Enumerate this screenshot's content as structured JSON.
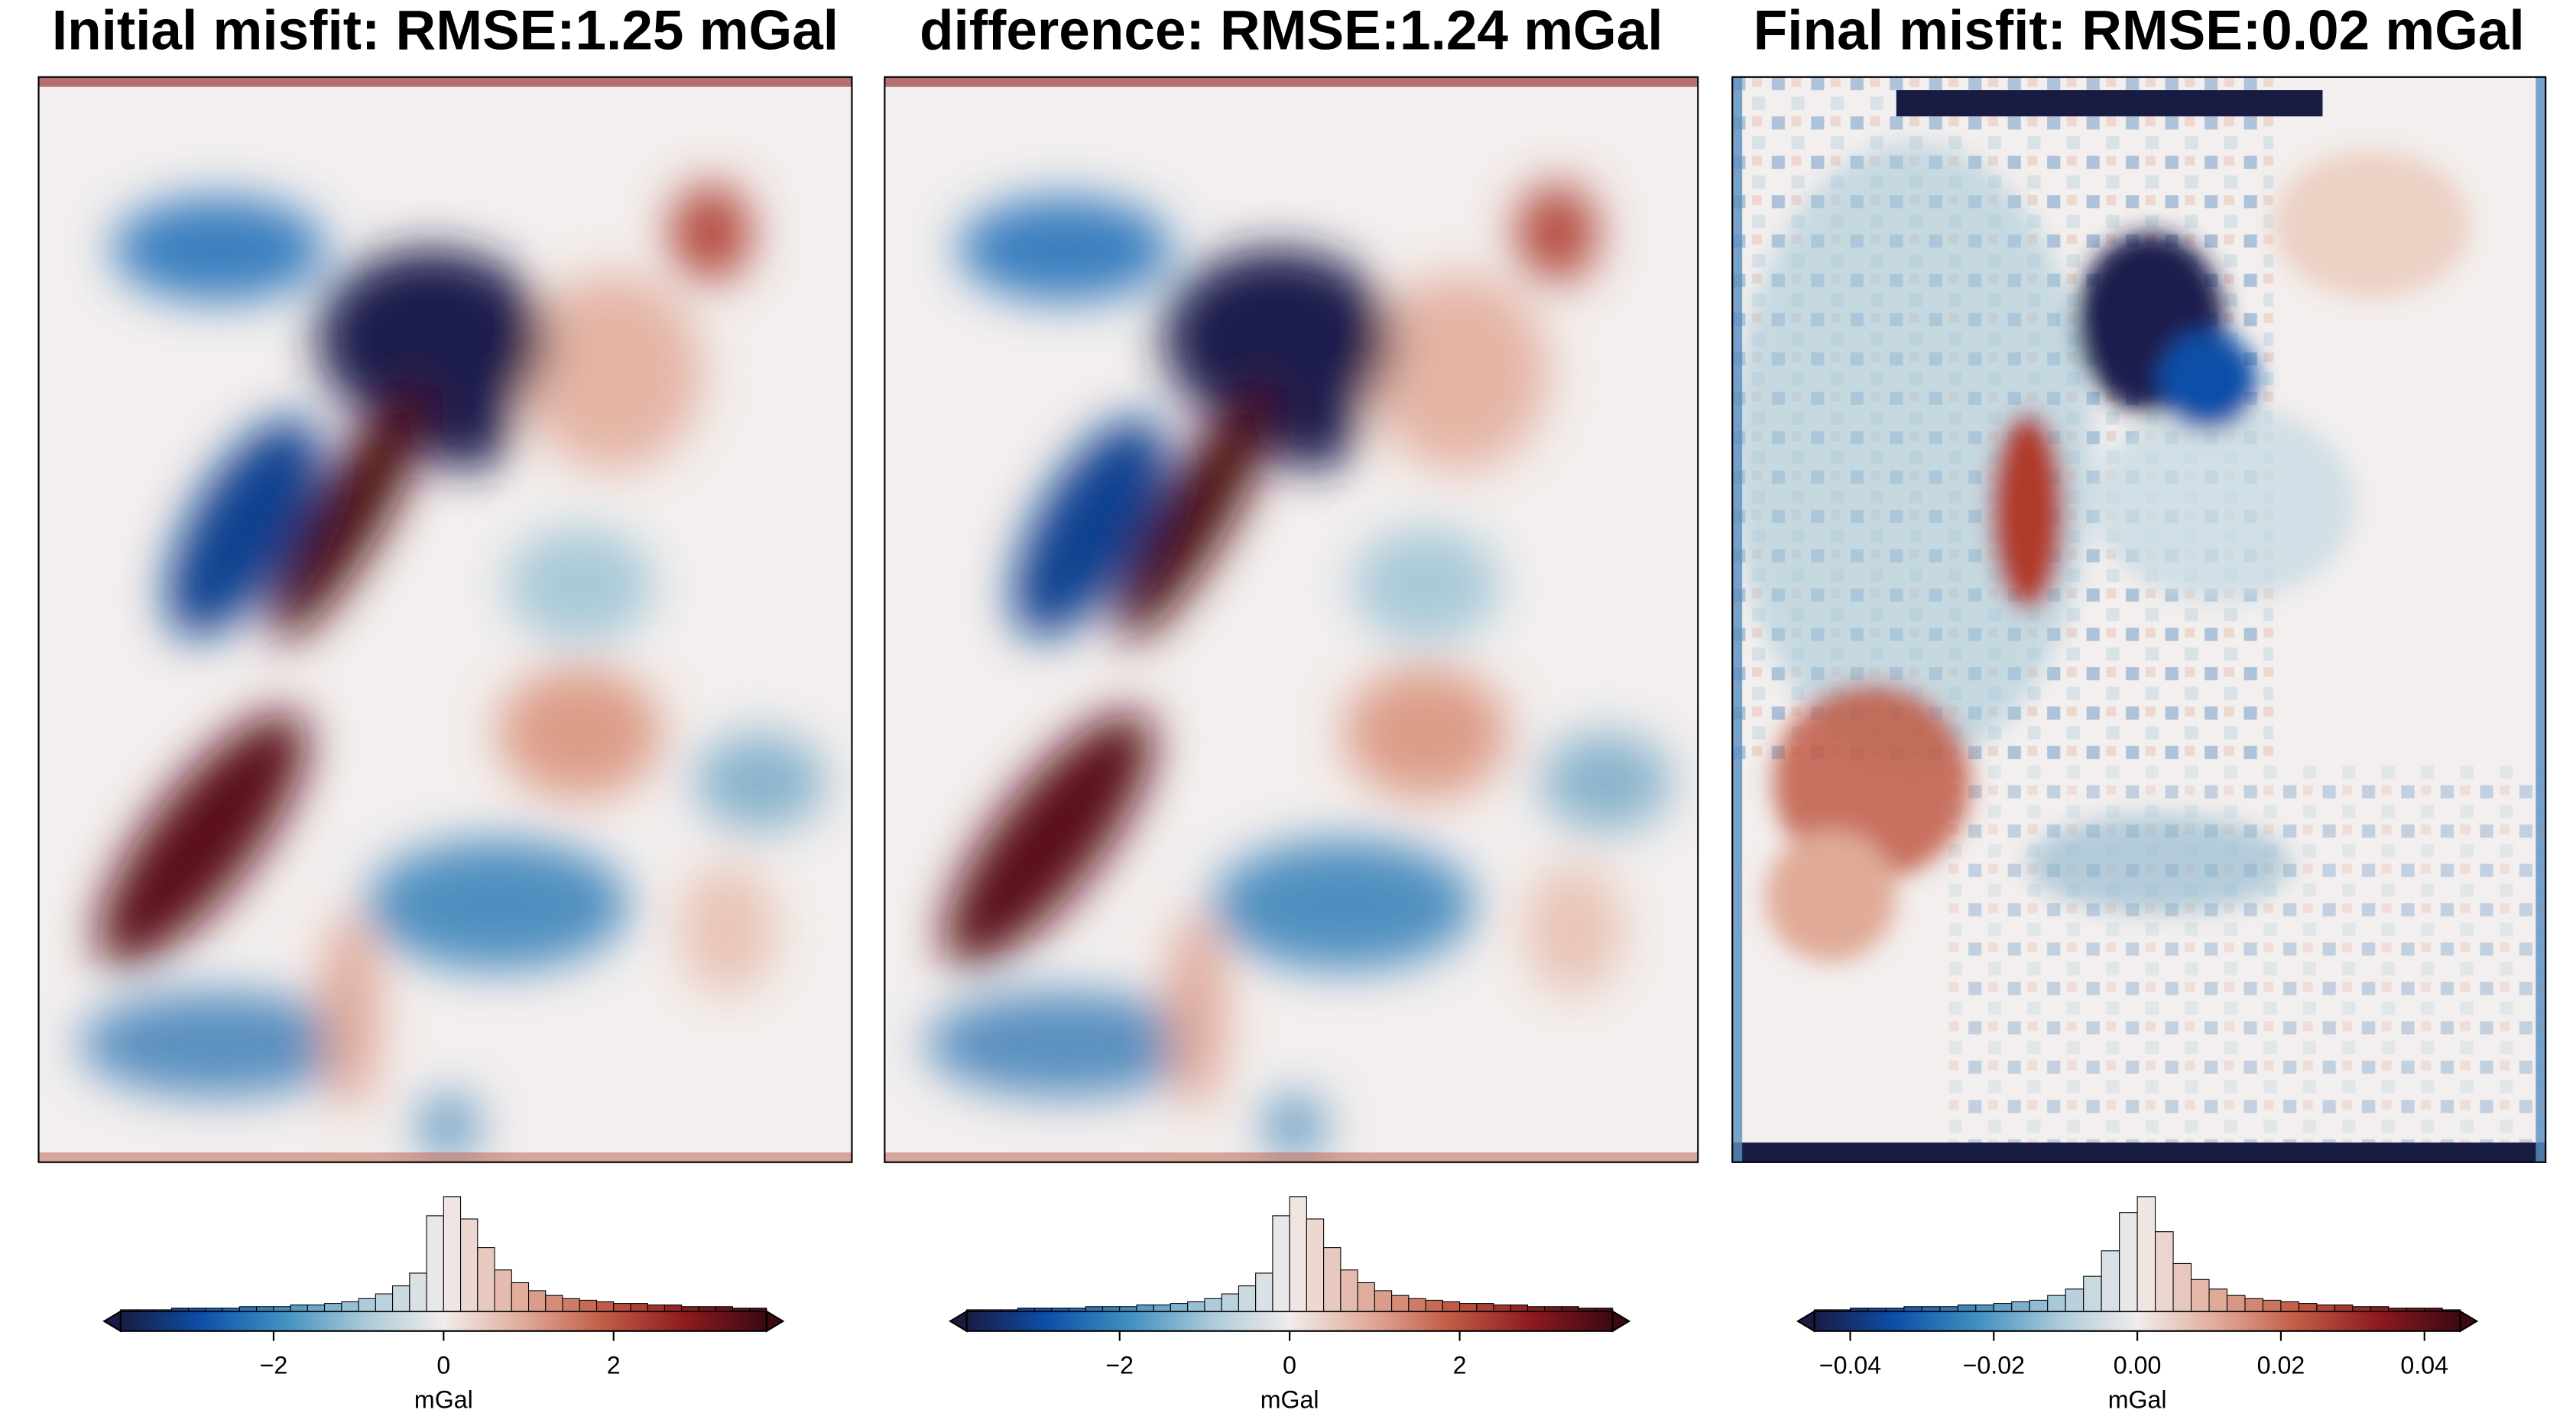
{
  "chart_data": [
    {
      "type": "histogram",
      "title": "Initial misfit: RMSE:1.25 mGal",
      "xlabel": "mGal",
      "bins": [
        -3.8,
        -3.6,
        -3.4,
        -3.2,
        -3.0,
        -2.8,
        -2.6,
        -2.4,
        -2.2,
        -2.0,
        -1.8,
        -1.6,
        -1.4,
        -1.2,
        -1.0,
        -0.8,
        -0.6,
        -0.4,
        -0.2,
        0,
        0.2,
        0.4,
        0.6,
        0.8,
        1.0,
        1.2,
        1.4,
        1.6,
        1.8,
        2.0,
        2.2,
        2.4,
        2.6,
        2.8,
        3.0,
        3.2,
        3.4,
        3.6,
        3.8
      ],
      "counts": [
        1,
        1,
        1,
        2,
        2,
        2,
        2,
        3,
        3,
        3,
        4,
        4,
        5,
        6,
        8,
        11,
        16,
        24,
        60,
        72,
        58,
        40,
        26,
        18,
        13,
        10,
        8,
        7,
        6,
        5,
        5,
        4,
        4,
        3,
        3,
        3,
        2,
        2
      ],
      "xlim": [
        -3.8,
        3.8
      ],
      "xticks": [
        {
          "value": -2,
          "label": "−2"
        },
        0,
        2
      ],
      "colormap": [
        "#181c43",
        "#0d4fa8",
        "#3f8fc0",
        "#a9c9d8",
        "#f1eceb",
        "#e0aa98",
        "#c05a44",
        "#8c1a1e",
        "#3c0912"
      ]
    },
    {
      "type": "histogram",
      "title": "difference: RMSE:1.24 mGal",
      "xlabel": "mGal",
      "bins": [
        -3.8,
        -3.6,
        -3.4,
        -3.2,
        -3.0,
        -2.8,
        -2.6,
        -2.4,
        -2.2,
        -2.0,
        -1.8,
        -1.6,
        -1.4,
        -1.2,
        -1.0,
        -0.8,
        -0.6,
        -0.4,
        -0.2,
        0,
        0.2,
        0.4,
        0.6,
        0.8,
        1.0,
        1.2,
        1.4,
        1.6,
        1.8,
        2.0,
        2.2,
        2.4,
        2.6,
        2.8,
        3.0,
        3.2,
        3.4,
        3.6,
        3.8
      ],
      "counts": [
        1,
        1,
        1,
        2,
        2,
        2,
        2,
        3,
        3,
        3,
        4,
        4,
        5,
        6,
        8,
        11,
        16,
        24,
        60,
        72,
        58,
        40,
        26,
        18,
        13,
        10,
        8,
        7,
        6,
        5,
        5,
        4,
        4,
        3,
        3,
        3,
        2,
        2
      ],
      "xlim": [
        -3.8,
        3.8
      ],
      "xticks": [
        {
          "value": -2,
          "label": "−2"
        },
        0,
        2
      ],
      "colormap": [
        "#181c43",
        "#0d4fa8",
        "#3f8fc0",
        "#a9c9d8",
        "#f1eceb",
        "#e0aa98",
        "#c05a44",
        "#8c1a1e",
        "#3c0912"
      ]
    },
    {
      "type": "histogram",
      "title": "Final misfit: RMSE:0.02 mGal",
      "xlabel": "mGal",
      "bins": [
        -0.045,
        -0.0425,
        -0.04,
        -0.0375,
        -0.035,
        -0.0325,
        -0.03,
        -0.0275,
        -0.025,
        -0.0225,
        -0.02,
        -0.0175,
        -0.015,
        -0.0125,
        -0.01,
        -0.0075,
        -0.005,
        -0.0025,
        0,
        0.0025,
        0.005,
        0.0075,
        0.01,
        0.0125,
        0.015,
        0.0175,
        0.02,
        0.0225,
        0.025,
        0.0275,
        0.03,
        0.0325,
        0.035,
        0.0375,
        0.04,
        0.0425,
        0.045
      ],
      "counts": [
        1,
        1,
        2,
        2,
        2,
        3,
        3,
        3,
        4,
        4,
        5,
        6,
        7,
        10,
        14,
        22,
        38,
        62,
        72,
        50,
        30,
        20,
        14,
        10,
        8,
        7,
        6,
        5,
        4,
        4,
        3,
        3,
        2,
        2,
        2,
        1
      ],
      "xlim": [
        -0.045,
        0.045
      ],
      "xticks": [
        {
          "value": -0.04,
          "label": "−0.04"
        },
        {
          "value": -0.02,
          "label": "−0.02"
        },
        {
          "value": 0,
          "label": "0.00"
        },
        {
          "value": 0.02,
          "label": "0.02"
        },
        {
          "value": 0.04,
          "label": "0.04"
        }
      ],
      "colormap": [
        "#181c43",
        "#0d4fa8",
        "#3f8fc0",
        "#a9c9d8",
        "#f1eceb",
        "#e0aa98",
        "#c05a44",
        "#8c1a1e",
        "#3c0912"
      ]
    }
  ]
}
